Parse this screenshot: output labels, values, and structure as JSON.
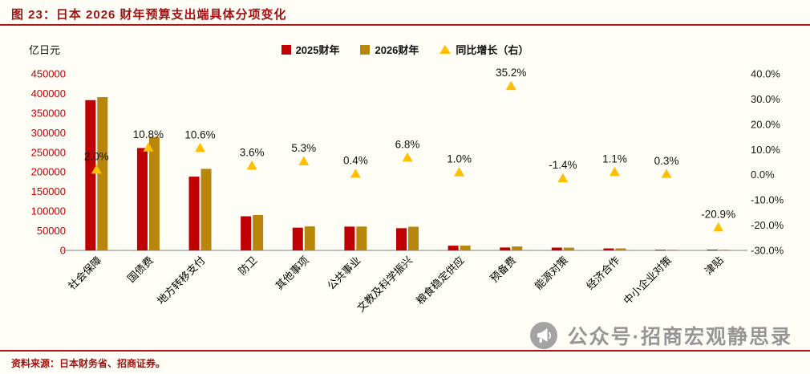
{
  "figure": {
    "title": "图 23：日本 2026 财年预算支出端具体分项变化",
    "unit_label": "亿日元",
    "source": "资料来源：日本财务省、招商证券。",
    "watermark": "公众号·招商宏观静思录"
  },
  "legend": {
    "items": [
      {
        "label": "2025财年",
        "marker": "square",
        "color": "#C00000"
      },
      {
        "label": "2026财年",
        "marker": "square",
        "color": "#B8860B"
      },
      {
        "label": "同比增长（右）",
        "marker": "triangle",
        "color": "#FFC000"
      }
    ]
  },
  "colors": {
    "accent_red": "#B01515",
    "bar_2025": "#C00000",
    "bar_2026": "#B8860B",
    "triangle": "#FFC000",
    "left_axis_label": "#C00000",
    "right_axis_label": "#1A1A1A",
    "category_label": "#000000",
    "data_label": "#111111",
    "axis_line": "#808080",
    "background": "#FFFEF6"
  },
  "chart_data": {
    "type": "bar",
    "title": "日本 2026 财年预算支出端具体分项变化",
    "categories": [
      "社会保障",
      "国债费",
      "地方转移支付",
      "防卫",
      "其他事项",
      "公共事业",
      "文教及科学振兴",
      "粮食稳定供应",
      "预备费",
      "能源对策",
      "经济合作",
      "中小企业对策",
      "津贴"
    ],
    "series": [
      {
        "name": "2025财年",
        "type": "bar",
        "axis": "left",
        "values": [
          383000,
          261000,
          188000,
          87000,
          58000,
          60600,
          56600,
          12100,
          7400,
          7100,
          5100,
          1700,
          2100
        ]
      },
      {
        "name": "2026财年",
        "type": "bar",
        "axis": "left",
        "values": [
          390700,
          289200,
          207900,
          90100,
          61100,
          60800,
          60400,
          12200,
          10000,
          7000,
          5150,
          1700,
          1660
        ]
      },
      {
        "name": "同比增长（右）",
        "type": "scatter",
        "marker": "triangle",
        "axis": "right",
        "values": [
          2.0,
          10.8,
          10.6,
          3.6,
          5.3,
          0.4,
          6.8,
          1.0,
          35.2,
          -1.4,
          1.1,
          0.3,
          -20.9
        ],
        "labels": [
          "2.0%",
          "10.8%",
          "10.6%",
          "3.6%",
          "5.3%",
          "0.4%",
          "6.8%",
          "1.0%",
          "35.2%",
          "-1.4%",
          "1.1%",
          "0.3%",
          "-20.9%"
        ]
      }
    ],
    "left_axis": {
      "title": "亿日元",
      "min": 0,
      "max": 450000,
      "step": 50000
    },
    "right_axis": {
      "min": -30,
      "max": 40,
      "step": 10,
      "suffix": "%",
      "decimals": 1
    },
    "grid": false,
    "legend_position": "top"
  }
}
